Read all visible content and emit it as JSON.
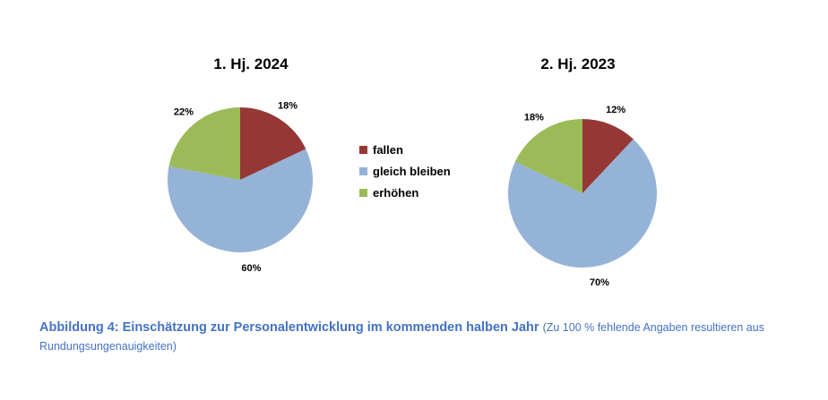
{
  "chart_data": [
    {
      "type": "pie",
      "title": "1. Hj. 2024",
      "categories": [
        "fallen",
        "gleich bleiben",
        "erhöhen"
      ],
      "values": [
        18,
        60,
        22
      ],
      "labels": [
        "18%",
        "60%",
        "22%"
      ]
    },
    {
      "type": "pie",
      "title": "2. Hj. 2023",
      "categories": [
        "fallen",
        "gleich bleiben",
        "erhöhen"
      ],
      "values": [
        12,
        70,
        18
      ],
      "labels": [
        "12%",
        "70%",
        "18%"
      ]
    }
  ],
  "legend": {
    "placement": "center",
    "items": [
      "fallen",
      "gleich bleiben",
      "erhöhen"
    ]
  },
  "colors": [
    "#953735",
    "#95B3D7",
    "#9BBB59"
  ],
  "caption": {
    "bold": "Abbildung 4: Einschätzung zur Personalentwicklung im kommenden halben Jahr",
    "note": "(Zu 100 % fehlende Angaben resultieren aus Rundungsungenauigkeiten)"
  }
}
